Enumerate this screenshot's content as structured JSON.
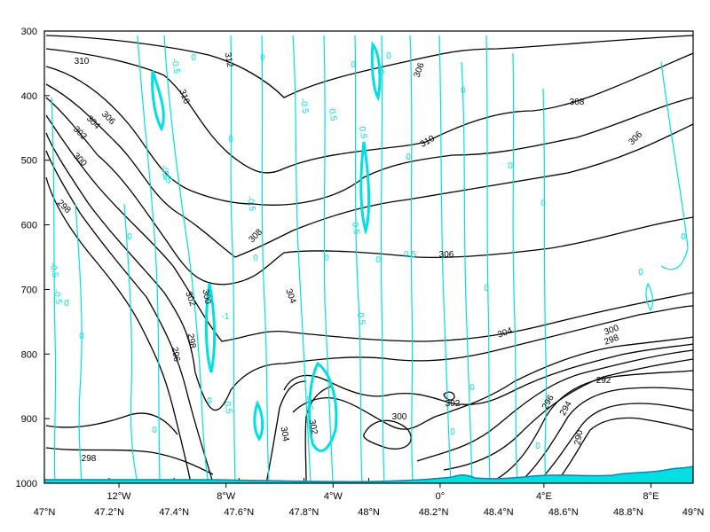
{
  "chart_data": {
    "type": "contour",
    "title": "",
    "xlabel": "",
    "ylabel": "",
    "y_axis": {
      "ticks": [
        "300",
        "400",
        "500",
        "600",
        "700",
        "800",
        "900",
        "1000"
      ],
      "range": [
        1000,
        300
      ],
      "scale": "inverted"
    },
    "x_axis_bottom": {
      "ticks": [
        "47°N",
        "47.2°N",
        "47.4°N",
        "47.6°N",
        "47.8°N",
        "48°N",
        "48.2°N",
        "48.4°N",
        "48.6°N",
        "48.8°N",
        "49°N"
      ],
      "range": [
        47,
        49
      ]
    },
    "x_axis_top": {
      "ticks": [
        "12°W",
        "8°W",
        "4°W",
        "0°",
        "4°E",
        "8°E"
      ],
      "positions_lat": [
        47.23,
        47.56,
        47.89,
        48.22,
        48.54,
        48.87
      ]
    },
    "colors": {
      "theta_contours": "#000000",
      "omega_contours": "#00e0e0",
      "orography": "#00e0e0",
      "frame": "#000000"
    },
    "series": [
      {
        "name": "",
        "kind": "black-contours",
        "levels": [
          290,
          292,
          294,
          296,
          298,
          300,
          302,
          304,
          306,
          308,
          310,
          312
        ],
        "visible_labels": [
          "310",
          "312",
          "310",
          "308",
          "306",
          "304",
          "302",
          "300",
          "298",
          "296",
          "294",
          "292",
          "290",
          "306",
          "304",
          "302",
          "300",
          "298",
          "308",
          "306",
          "304",
          "302",
          "300",
          "298",
          "296",
          "310",
          "306",
          "304",
          "302",
          "300",
          "298"
        ]
      },
      {
        "name": "",
        "kind": "cyan-contours",
        "levels": [
          -1,
          -0.5,
          0,
          0.5
        ],
        "visible_labels": [
          "-0.5",
          "0",
          "-0.5",
          "0",
          "-0.5",
          "0",
          "0",
          "0",
          "-0.5",
          "-0.5",
          "0",
          "0.5",
          "0.5",
          "0",
          "0",
          "0.5",
          "-0.5",
          "-1",
          "0",
          "-0.5",
          "0",
          "0",
          "0",
          "0.5",
          "0",
          "0.5",
          "-0.5",
          "0",
          "0",
          "0",
          "0",
          "0",
          "0.5",
          "0",
          "0",
          "0",
          "0",
          "0",
          "0"
        ]
      }
    ]
  }
}
